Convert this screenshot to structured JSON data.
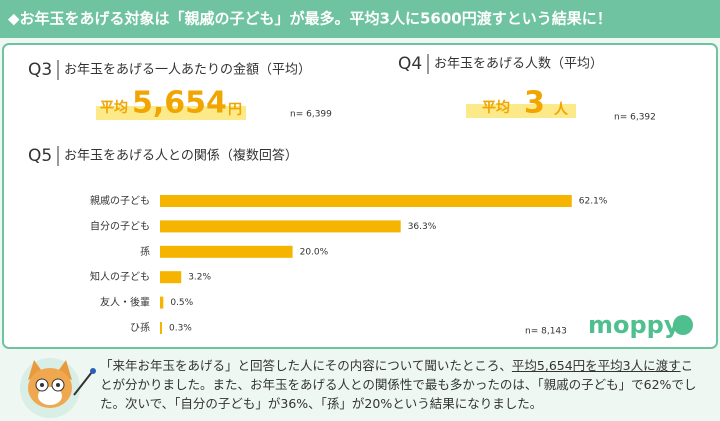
{
  "header": {
    "title": "◆お年玉をあげる対象は「親戚の子ども」が最多。平均3人に5600円渡すという結果に！"
  },
  "q3": {
    "number": "Q3",
    "title": "お年玉をあげる一人あたりの金額（平均）",
    "prefix": "平均",
    "value": "5,654",
    "unit": "円",
    "n": "n= 6,399"
  },
  "q4": {
    "number": "Q4",
    "title": "お年玉をあげる人数（平均）",
    "prefix": "平均",
    "value": "3",
    "unit": "人",
    "n": "n= 6,392"
  },
  "chart_data": {
    "type": "bar",
    "number": "Q5",
    "title": "お年玉をあげる人との関係（複数回答）",
    "categories": [
      "親戚の子ども",
      "自分の子ども",
      "孫",
      "知人の子ども",
      "友人・後輩",
      "ひ孫"
    ],
    "values": [
      62.1,
      36.3,
      20.0,
      3.2,
      0.5,
      0.3
    ],
    "value_labels": [
      "62.1%",
      "36.3%",
      "20.0%",
      "3.2%",
      "0.5%",
      "0.3%"
    ],
    "color": "#f5b400",
    "xlim": [
      0,
      65
    ],
    "n": "n= 8,143"
  },
  "logo": "moppy",
  "footer": {
    "before": "「来年お年玉をあげる」と回答した人にその内容について聞いたところ、",
    "underlined": "平均5,654円を平均3人に渡す",
    "after": "ことが分かりました。また、お年玉をあげる人との関係性で最も多かったのは、「親戚の子ども」で62%でした。次いで、「自分の子ども」が36%、「孫」が20%という結果になりました。"
  }
}
